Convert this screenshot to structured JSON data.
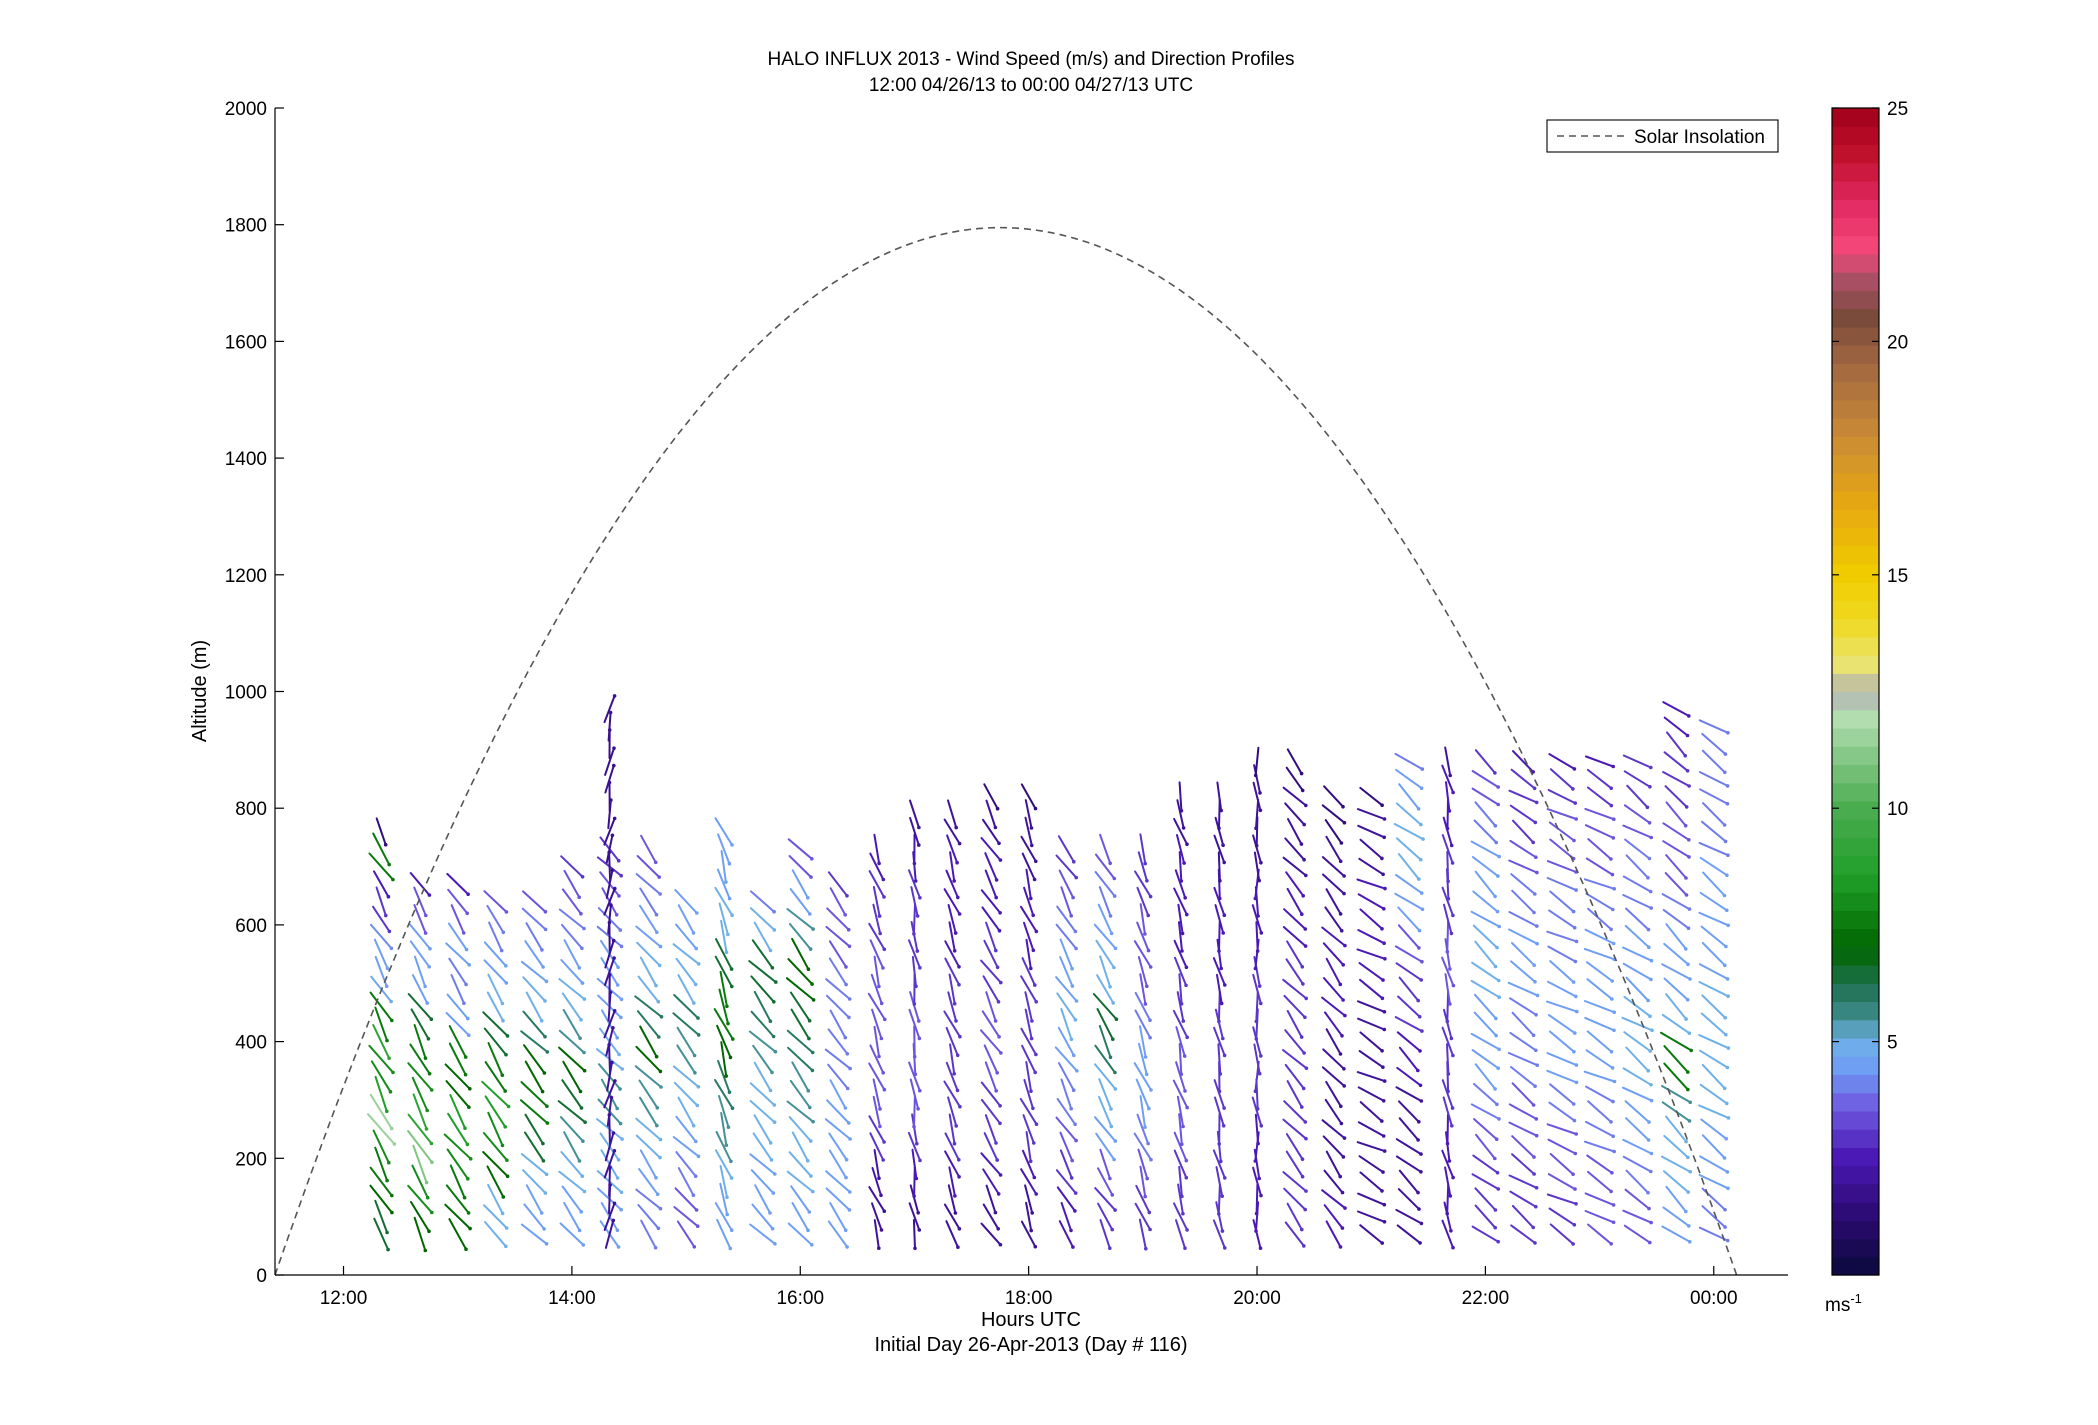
{
  "chart_data": {
    "type": "line",
    "title": "HALO INFLUX 2013 - Wind Speed (m/s) and Direction Profiles",
    "subtitle": "12:00 04/26/13 to 00:00 04/27/13  UTC",
    "xlabel": "Hours UTC",
    "xlabel_sub": "Initial Day 26-Apr-2013 (Day # 116)",
    "ylabel": "Altitude (m)",
    "xlim_hours": [
      11.4,
      24.65
    ],
    "ylim": [
      0,
      2000
    ],
    "x_ticks": [
      {
        "hour": 12,
        "label": "12:00"
      },
      {
        "hour": 14,
        "label": "14:00"
      },
      {
        "hour": 16,
        "label": "16:00"
      },
      {
        "hour": 18,
        "label": "18:00"
      },
      {
        "hour": 20,
        "label": "20:00"
      },
      {
        "hour": 22,
        "label": "22:00"
      },
      {
        "hour": 24,
        "label": "00:00"
      }
    ],
    "y_ticks": [
      0,
      200,
      400,
      600,
      800,
      1000,
      1200,
      1400,
      1600,
      1800,
      2000
    ],
    "legend": {
      "label": "Solar Insolation",
      "position": "top-right",
      "style": "dashed"
    },
    "solar_insolation": {
      "start_hour": 11.4,
      "end_hour": 24.2,
      "peak_hour": 17.75,
      "peak_altitude": 1795
    },
    "colorbar": {
      "min": 0,
      "max": 25,
      "ticks": [
        5,
        10,
        15,
        20,
        25
      ],
      "unit": "ms",
      "unit_exp": "-1",
      "stops": [
        {
          "v": 0,
          "color": "#0a0a3c"
        },
        {
          "v": 1.2,
          "color": "#2a0a6e"
        },
        {
          "v": 2.5,
          "color": "#4a18b4"
        },
        {
          "v": 3.6,
          "color": "#6f5ae0"
        },
        {
          "v": 4.4,
          "color": "#6f9cf5"
        },
        {
          "v": 5.0,
          "color": "#6fb0e8"
        },
        {
          "v": 5.6,
          "color": "#3a8a86"
        },
        {
          "v": 6.2,
          "color": "#1e7050"
        },
        {
          "v": 7.0,
          "color": "#006600"
        },
        {
          "v": 8.5,
          "color": "#1f9e28"
        },
        {
          "v": 10.0,
          "color": "#4aac50"
        },
        {
          "v": 11.3,
          "color": "#8fcc8f"
        },
        {
          "v": 12.0,
          "color": "#b7dfb4"
        },
        {
          "v": 12.5,
          "color": "#b0b0b0"
        },
        {
          "v": 13.0,
          "color": "#e8e47a"
        },
        {
          "v": 14.0,
          "color": "#f0da22"
        },
        {
          "v": 15.0,
          "color": "#f0cc00"
        },
        {
          "v": 16.5,
          "color": "#e7a812"
        },
        {
          "v": 18.0,
          "color": "#c98b36"
        },
        {
          "v": 19.5,
          "color": "#a26840"
        },
        {
          "v": 20.5,
          "color": "#7a4a3a"
        },
        {
          "v": 21.2,
          "color": "#a05060"
        },
        {
          "v": 22.0,
          "color": "#f4477a"
        },
        {
          "v": 23.0,
          "color": "#e02860"
        },
        {
          "v": 24.0,
          "color": "#c0102c"
        },
        {
          "v": 25.0,
          "color": "#a0001a"
        }
      ]
    },
    "wind_profiles": [
      {
        "hour": 12.33,
        "top": 770,
        "speed": [
          6.5,
          7.0,
          7.5,
          8.0,
          11.5,
          8.5,
          8.0,
          9.0,
          7.5,
          4.8,
          4.5,
          4.2,
          3.0,
          2.5,
          7.5,
          1.5
        ],
        "dir": 150
      },
      {
        "hour": 12.67,
        "top": 690,
        "speed": [
          7.0,
          8.0,
          11.0,
          9.0,
          8.0,
          7.5,
          6.5,
          4.5,
          4.5,
          3.5,
          2.5
        ],
        "dir": 150
      },
      {
        "hour": 13.0,
        "top": 690,
        "speed": [
          7.0,
          7.5,
          8.0,
          8.5,
          7.0,
          7.5,
          4.5,
          4.0,
          4.5,
          3.5,
          2.5
        ],
        "dir": 145
      },
      {
        "hour": 13.33,
        "top": 660,
        "speed": [
          5.0,
          7.0,
          8.0,
          8.5,
          7.5,
          6.5,
          5.0,
          4.5,
          4.0,
          3.5
        ],
        "dir": 145
      },
      {
        "hour": 13.67,
        "top": 660,
        "speed": [
          4.5,
          5.0,
          6.5,
          7.5,
          7.0,
          6.0,
          5.0,
          4.5,
          4.0,
          3.5
        ],
        "dir": 140
      },
      {
        "hour": 14.0,
        "top": 720,
        "speed": [
          4.5,
          5.0,
          5.5,
          6.5,
          7.0,
          5.5,
          5.0,
          4.5,
          4.0,
          3.5,
          3.0
        ],
        "dir": 140
      },
      {
        "hour": 14.33,
        "top": 730,
        "speed": [
          4.5,
          5.0,
          5.0,
          5.5,
          5.0,
          4.5,
          4.5,
          4.0,
          3.5,
          3.0
        ],
        "dir": 140
      },
      {
        "hour": 14.33,
        "top": 985,
        "speed": [
          2.0,
          1.8
        ],
        "dir": 10
      },
      {
        "hour": 14.67,
        "top": 730,
        "speed": [
          4.0,
          4.5,
          5.0,
          5.5,
          7.0,
          6.0,
          5.0,
          4.5,
          4.0,
          3.5
        ],
        "dir": 140
      },
      {
        "hour": 15.0,
        "top": 660,
        "speed": [
          3.5,
          4.0,
          4.5,
          5.0,
          5.5,
          6.0,
          5.0,
          4.5,
          4.5
        ],
        "dir": 140
      },
      {
        "hour": 15.33,
        "top": 770,
        "speed": [
          4.5,
          5.0,
          5.5,
          6.0,
          7.0,
          7.5,
          6.5,
          5.0,
          4.5,
          4.5
        ],
        "dir": 160
      },
      {
        "hour": 15.67,
        "top": 660,
        "speed": [
          4.5,
          4.5,
          5.0,
          5.0,
          5.5,
          6.0,
          6.5,
          5.0,
          4.0
        ],
        "dir": 140
      },
      {
        "hour": 16.0,
        "top": 730,
        "speed": [
          4.5,
          5.0,
          5.0,
          5.5,
          6.0,
          6.5,
          7.0,
          5.5,
          4.5,
          3.5
        ],
        "dir": 140
      },
      {
        "hour": 16.33,
        "top": 690,
        "speed": [
          4.5,
          4.5,
          4.5,
          4.5,
          4.0,
          4.0,
          4.0,
          3.5,
          3.5,
          3.0
        ],
        "dir": 140
      },
      {
        "hour": 16.67,
        "top": 730,
        "speed": [
          2.0,
          2.2,
          3.0,
          3.5,
          3.5,
          3.5,
          3.5,
          3.0,
          3.0,
          2.5
        ],
        "dir": 160
      },
      {
        "hour": 17.0,
        "top": 800,
        "speed": [
          2.0,
          2.5,
          3.0,
          3.5,
          3.5,
          3.5,
          3.0,
          3.0,
          3.0,
          2.5,
          2.0
        ],
        "dir": 170
      },
      {
        "hour": 17.33,
        "top": 800,
        "speed": [
          2.0,
          2.5,
          3.0,
          3.0,
          3.0,
          3.0,
          3.0,
          2.5,
          2.5,
          2.5,
          2.0
        ],
        "dir": 160
      },
      {
        "hour": 17.67,
        "top": 840,
        "speed": [
          2.0,
          2.5,
          3.0,
          3.0,
          3.5,
          3.5,
          3.0,
          3.0,
          2.5,
          2.5,
          2.0,
          1.5
        ],
        "dir": 150
      },
      {
        "hour": 18.0,
        "top": 840,
        "speed": [
          2.0,
          2.5,
          3.0,
          3.0,
          3.0,
          3.0,
          3.0,
          2.5,
          2.5,
          2.0,
          2.0,
          1.5
        ],
        "dir": 160
      },
      {
        "hour": 18.33,
        "top": 730,
        "speed": [
          2.5,
          3.0,
          3.5,
          4.0,
          4.5,
          5.0,
          4.5,
          4.0,
          3.5,
          3.0
        ],
        "dir": 150
      },
      {
        "hour": 18.67,
        "top": 730,
        "speed": [
          3.0,
          3.5,
          4.5,
          5.0,
          6.0,
          6.5,
          5.0,
          4.5,
          4.0,
          3.5
        ],
        "dir": 150
      },
      {
        "hour": 19.0,
        "top": 730,
        "speed": [
          3.0,
          3.5,
          4.0,
          4.5,
          4.5,
          4.0,
          3.5,
          3.5,
          3.0,
          3.0
        ],
        "dir": 160
      },
      {
        "hour": 19.33,
        "top": 840,
        "speed": [
          3.0,
          3.0,
          3.5,
          3.5,
          3.5,
          3.0,
          3.0,
          2.5,
          2.5,
          2.5,
          2.0,
          2.0
        ],
        "dir": 165
      },
      {
        "hour": 19.67,
        "top": 840,
        "speed": [
          3.0,
          3.0,
          3.0,
          3.0,
          3.0,
          3.0,
          2.5,
          2.5,
          2.5,
          2.0,
          2.0,
          2.0
        ],
        "dir": 170
      },
      {
        "hour": 20.0,
        "top": 900,
        "speed": [
          2.5,
          2.5,
          2.5,
          3.0,
          3.0,
          3.0,
          3.0,
          2.5,
          2.5,
          2.0,
          2.0,
          2.0,
          1.5
        ],
        "dir": 175
      },
      {
        "hour": 20.33,
        "top": 880,
        "speed": [
          3.0,
          3.0,
          3.0,
          3.0,
          3.0,
          3.0,
          3.0,
          2.5,
          2.5,
          2.0,
          2.0,
          1.5
        ],
        "dir": 140
      },
      {
        "hour": 20.67,
        "top": 840,
        "speed": [
          2.5,
          2.0,
          2.0,
          2.0,
          2.0,
          2.5,
          2.5,
          2.5,
          2.0,
          2.0,
          1.5,
          1.5
        ],
        "dir": 140
      },
      {
        "hour": 21.0,
        "top": 840,
        "speed": [
          2.0,
          2.0,
          2.0,
          2.0,
          2.0,
          2.0,
          2.5,
          2.5,
          2.5,
          2.0,
          2.0,
          1.5
        ],
        "dir": 120
      },
      {
        "hour": 21.33,
        "top": 900,
        "speed": [
          2.0,
          2.0,
          2.0,
          2.0,
          2.5,
          3.0,
          3.0,
          3.5,
          4.5,
          5.0,
          5.0,
          4.5,
          4.0
        ],
        "dir": 130
      },
      {
        "hour": 21.67,
        "top": 900,
        "speed": [
          2.5,
          2.5,
          2.5,
          3.0,
          3.0,
          3.0,
          3.5,
          3.5,
          3.0,
          3.0,
          2.5,
          2.5,
          2.0
        ],
        "dir": 170
      },
      {
        "hour": 22.0,
        "top": 900,
        "speed": [
          3.0,
          3.0,
          3.5,
          4.0,
          4.5,
          4.5,
          5.0,
          5.0,
          4.5,
          4.5,
          4.0,
          3.5,
          3.0
        ],
        "dir": 130
      },
      {
        "hour": 22.33,
        "top": 900,
        "speed": [
          3.0,
          3.0,
          3.5,
          3.5,
          4.0,
          4.0,
          4.5,
          4.5,
          4.0,
          3.5,
          3.0,
          3.0,
          2.5
        ],
        "dir": 125
      },
      {
        "hour": 22.67,
        "top": 900,
        "speed": [
          3.0,
          3.5,
          3.5,
          4.0,
          4.5,
          4.5,
          4.5,
          4.0,
          4.0,
          3.5,
          3.5,
          3.0,
          2.5
        ],
        "dir": 120
      },
      {
        "hour": 23.0,
        "top": 900,
        "speed": [
          3.5,
          3.5,
          4.0,
          4.0,
          4.5,
          4.5,
          4.5,
          4.5,
          4.0,
          3.5,
          3.5,
          3.0,
          2.5
        ],
        "dir": 120
      },
      {
        "hour": 23.33,
        "top": 900,
        "speed": [
          3.5,
          4.0,
          4.5,
          4.5,
          5.0,
          5.0,
          4.5,
          4.5,
          4.0,
          4.0,
          3.5,
          3.0,
          3.0
        ],
        "dir": 125
      },
      {
        "hour": 23.67,
        "top": 980,
        "speed": [
          4.5,
          5.0,
          5.0,
          5.5,
          7.5,
          5.0,
          4.5,
          4.5,
          4.0,
          3.5,
          3.5,
          3.0,
          3.0,
          2.5
        ],
        "dir": 130
      },
      {
        "hour": 24.0,
        "top": 950,
        "speed": [
          4.0,
          4.5,
          4.5,
          5.0,
          5.0,
          5.0,
          5.0,
          4.5,
          4.5,
          4.5,
          4.0,
          4.0,
          4.0,
          4.0
        ],
        "dir": 125
      }
    ]
  }
}
